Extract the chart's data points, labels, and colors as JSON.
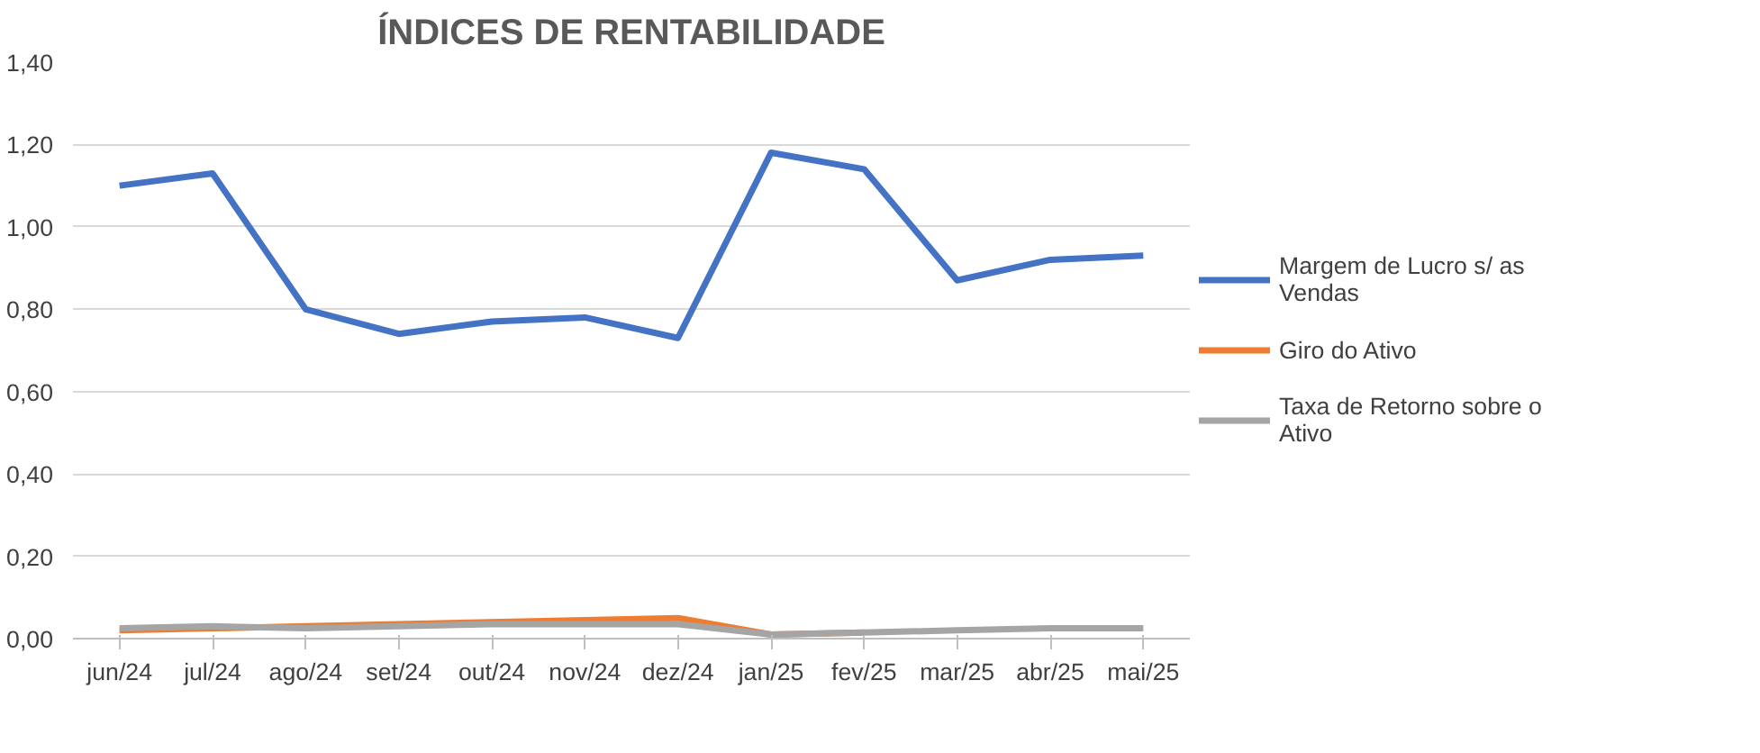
{
  "chart_data": {
    "type": "line",
    "title": "ÍNDICES DE RENTABILIDADE",
    "categories": [
      "jun/24",
      "jul/24",
      "ago/24",
      "set/24",
      "out/24",
      "nov/24",
      "dez/24",
      "jan/25",
      "fev/25",
      "mar/25",
      "abr/25",
      "mai/25"
    ],
    "series": [
      {
        "name": "Margem de Lucro s/ as Vendas",
        "color": "#4472c4",
        "values": [
          1.1,
          1.13,
          0.8,
          0.74,
          0.77,
          0.78,
          0.73,
          1.18,
          1.14,
          0.87,
          0.92,
          0.93
        ]
      },
      {
        "name": "Giro do Ativo",
        "color": "#ed7d31",
        "values": [
          0.02,
          0.025,
          0.03,
          0.035,
          0.04,
          0.045,
          0.05,
          0.01,
          0.015,
          null,
          null,
          null
        ]
      },
      {
        "name": "Taxa de Retorno sobre o Ativo",
        "color": "#a5a5a5",
        "values": [
          0.025,
          0.03,
          0.025,
          0.03,
          0.035,
          0.035,
          0.035,
          0.01,
          0.015,
          0.02,
          0.025,
          0.025
        ]
      }
    ],
    "ylim": [
      0,
      1.4
    ],
    "yticks": [
      {
        "value": 0,
        "label": "0,00"
      },
      {
        "value": 0.2,
        "label": "0,20"
      },
      {
        "value": 0.4,
        "label": "0,40"
      },
      {
        "value": 0.6,
        "label": "0,60"
      },
      {
        "value": 0.8,
        "label": "0,80"
      },
      {
        "value": 1.0,
        "label": "1,00"
      },
      {
        "value": 1.2,
        "label": "1,20"
      },
      {
        "value": 1.4,
        "label": "1,40"
      }
    ],
    "grid": "y",
    "legend": "right",
    "marker": "none",
    "line_style": "solid"
  }
}
